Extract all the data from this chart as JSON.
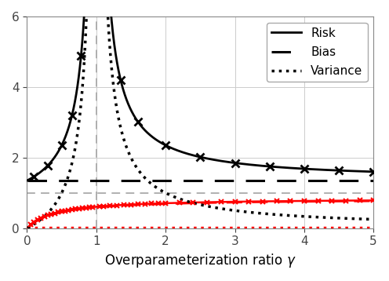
{
  "title": "",
  "xlabel": "Overparameterization ratio $\\gamma$",
  "ylabel": "",
  "xlim": [
    0,
    5
  ],
  "ylim": [
    0,
    6
  ],
  "yticks": [
    0,
    2,
    4,
    6
  ],
  "xticks": [
    0,
    1,
    2,
    3,
    4,
    5
  ],
  "vline_x": 1.0,
  "hline_y": 1.0,
  "hline_color": "#aaaaaa",
  "vline_color": "#aaaaaa",
  "black_bias_level": 1.35,
  "legend_labels": [
    "Risk",
    "Bias",
    "Variance"
  ],
  "background_color": "#ffffff",
  "black_marks_under": [
    0.1,
    0.3,
    0.5,
    0.65,
    0.78,
    0.88
  ],
  "black_marks_over": [
    1.15,
    1.35,
    1.6,
    2.0,
    2.5,
    3.0,
    3.5,
    4.0,
    4.5,
    5.0
  ],
  "red_marks_x": [
    0.05,
    0.1,
    0.15,
    0.2,
    0.25,
    0.3,
    0.35,
    0.4,
    0.45,
    0.5,
    0.55,
    0.6,
    0.65,
    0.7,
    0.75,
    0.8,
    0.85,
    0.9,
    0.95,
    1.05,
    1.1,
    1.2,
    1.3,
    1.4,
    1.5,
    1.6,
    1.7,
    1.8,
    1.9,
    2.0,
    2.2,
    2.4,
    2.6,
    2.8,
    3.0,
    3.2,
    3.4,
    3.6,
    3.8,
    4.0,
    4.2,
    4.4,
    4.6,
    4.8,
    5.0
  ]
}
